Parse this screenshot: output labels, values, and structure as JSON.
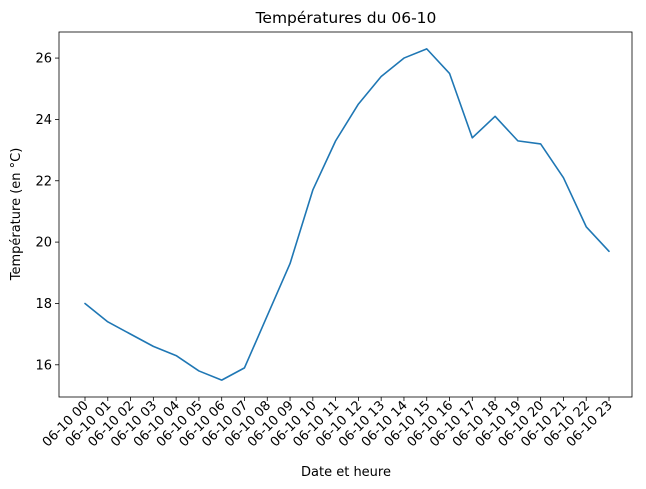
{
  "chart_data": {
    "type": "line",
    "title": "Températures du 06-10",
    "xlabel": "Date et heure",
    "ylabel": "Température (en °C)",
    "categories": [
      "06-10 00",
      "06-10 01",
      "06-10 02",
      "06-10 03",
      "06-10 04",
      "06-10 05",
      "06-10 06",
      "06-10 07",
      "06-10 08",
      "06-10 09",
      "06-10 10",
      "06-10 11",
      "06-10 12",
      "06-10 13",
      "06-10 14",
      "06-10 15",
      "06-10 16",
      "06-10 17",
      "06-10 18",
      "06-10 19",
      "06-10 20",
      "06-10 21",
      "06-10 22",
      "06-10 23"
    ],
    "series": [
      {
        "values": [
          18.0,
          17.4,
          17.0,
          16.6,
          16.3,
          15.8,
          15.5,
          15.9,
          17.6,
          19.3,
          21.7,
          23.3,
          24.5,
          25.4,
          26.0,
          26.3,
          25.5,
          23.4,
          24.1,
          23.3,
          23.2,
          22.1,
          20.5,
          19.7
        ],
        "color": "#1f77b4"
      }
    ],
    "yticks": [
      16,
      18,
      20,
      22,
      24,
      26
    ],
    "ylim": [
      14.95,
      26.85
    ],
    "grid": false,
    "legend": "none"
  }
}
